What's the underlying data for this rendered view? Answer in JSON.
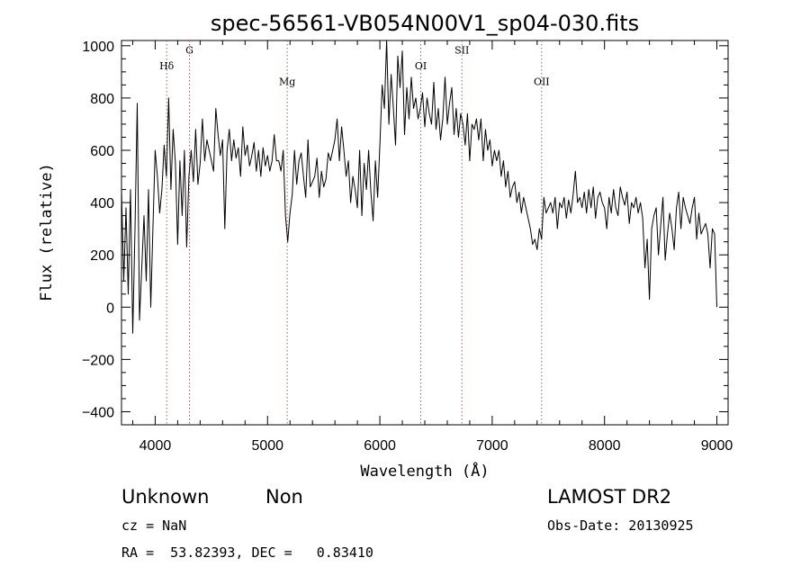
{
  "chart_data": {
    "type": "line",
    "title": "spec-56561-VB054N00V1_sp04-030.fits",
    "xlabel": "Wavelength (Å)",
    "ylabel": "Flux (relative)",
    "xlim": [
      3700,
      9100
    ],
    "ylim": [
      -450,
      1020
    ],
    "x_ticks": [
      4000,
      5000,
      6000,
      7000,
      8000,
      9000
    ],
    "y_ticks": [
      -400,
      -200,
      0,
      200,
      400,
      600,
      800,
      1000
    ],
    "grid": false,
    "series": [
      {
        "x": [
          3700,
          3720,
          3740,
          3760,
          3780,
          3800,
          3820,
          3840,
          3860,
          3880,
          3900,
          3920,
          3940,
          3960,
          3980,
          4000,
          4020,
          4040,
          4060,
          4080,
          4100,
          4120,
          4140,
          4160,
          4180,
          4200,
          4220,
          4240,
          4260,
          4280,
          4300,
          4320,
          4340,
          4360,
          4380,
          4400,
          4420,
          4440,
          4460,
          4480,
          4500,
          4520,
          4540,
          4560,
          4580,
          4600,
          4620,
          4640,
          4660,
          4680,
          4700,
          4720,
          4740,
          4760,
          4780,
          4800,
          4820,
          4840,
          4860,
          4880,
          4900,
          4920,
          4940,
          4960,
          4980,
          5000,
          5020,
          5040,
          5060,
          5080,
          5100,
          5120,
          5140,
          5160,
          5180,
          5200,
          5220,
          5240,
          5260,
          5280,
          5300,
          5320,
          5340,
          5360,
          5380,
          5400,
          5420,
          5440,
          5460,
          5480,
          5500,
          5520,
          5540,
          5560,
          5580,
          5600,
          5620,
          5640,
          5660,
          5680,
          5700,
          5720,
          5740,
          5760,
          5780,
          5800,
          5820,
          5840,
          5860,
          5880,
          5900,
          5920,
          5940,
          5960,
          5980,
          6000,
          6020,
          6040,
          6060,
          6080,
          6100,
          6120,
          6140,
          6160,
          6180,
          6200,
          6220,
          6240,
          6260,
          6280,
          6300,
          6320,
          6340,
          6360,
          6380,
          6400,
          6420,
          6440,
          6460,
          6480,
          6500,
          6520,
          6540,
          6560,
          6580,
          6600,
          6620,
          6640,
          6660,
          6680,
          6700,
          6720,
          6740,
          6760,
          6780,
          6800,
          6820,
          6840,
          6860,
          6880,
          6900,
          6920,
          6940,
          6960,
          6980,
          7000,
          7020,
          7040,
          7060,
          7080,
          7100,
          7120,
          7140,
          7160,
          7180,
          7200,
          7220,
          7240,
          7260,
          7280,
          7300,
          7320,
          7340,
          7360,
          7380,
          7400,
          7420,
          7440,
          7460,
          7480,
          7500,
          7520,
          7540,
          7560,
          7580,
          7600,
          7620,
          7640,
          7660,
          7680,
          7700,
          7720,
          7740,
          7760,
          7780,
          7800,
          7820,
          7840,
          7860,
          7880,
          7900,
          7920,
          7940,
          7960,
          7980,
          8000,
          8020,
          8040,
          8060,
          8080,
          8100,
          8120,
          8140,
          8160,
          8180,
          8200,
          8220,
          8240,
          8260,
          8280,
          8300,
          8320,
          8340,
          8360,
          8380,
          8400,
          8420,
          8440,
          8460,
          8480,
          8500,
          8520,
          8540,
          8560,
          8580,
          8600,
          8620,
          8640,
          8660,
          8680,
          8700,
          8720,
          8740,
          8760,
          8780,
          8800,
          8820,
          8840,
          8860,
          8880,
          8900,
          8920,
          8940,
          8960,
          8980,
          9000
        ],
        "y": [
          450,
          100,
          380,
          50,
          450,
          -100,
          300,
          780,
          -50,
          150,
          350,
          100,
          450,
          0,
          300,
          600,
          500,
          360,
          450,
          620,
          500,
          800,
          450,
          680,
          550,
          240,
          560,
          350,
          600,
          230,
          500,
          600,
          480,
          680,
          470,
          550,
          720,
          560,
          640,
          600,
          560,
          520,
          760,
          660,
          580,
          640,
          300,
          600,
          680,
          560,
          640,
          570,
          610,
          500,
          690,
          580,
          620,
          540,
          580,
          630,
          520,
          600,
          500,
          610,
          540,
          580,
          520,
          560,
          660,
          560,
          560,
          520,
          600,
          350,
          250,
          360,
          430,
          600,
          470,
          560,
          590,
          500,
          420,
          640,
          460,
          480,
          500,
          570,
          420,
          520,
          460,
          490,
          590,
          560,
          600,
          640,
          720,
          560,
          690,
          600,
          500,
          560,
          400,
          500,
          450,
          380,
          600,
          350,
          550,
          450,
          600,
          440,
          330,
          560,
          420,
          620,
          850,
          760,
          1020,
          700,
          890,
          760,
          620,
          960,
          840,
          980,
          660,
          840,
          720,
          880,
          760,
          800,
          720,
          760,
          820,
          690,
          800,
          740,
          700,
          860,
          680,
          760,
          640,
          720,
          880,
          700,
          780,
          840,
          660,
          760,
          650,
          740,
          700,
          620,
          740,
          560,
          700,
          680,
          720,
          640,
          720,
          560,
          680,
          600,
          640,
          540,
          600,
          560,
          600,
          500,
          560,
          460,
          520,
          420,
          460,
          480,
          400,
          440,
          360,
          420,
          380,
          340,
          300,
          240,
          260,
          220,
          300,
          260,
          420,
          360,
          380,
          400,
          360,
          420,
          300,
          400,
          380,
          420,
          340,
          410,
          360,
          430,
          520,
          400,
          420,
          380,
          440,
          360,
          450,
          380,
          460,
          340,
          420,
          440,
          400,
          380,
          300,
          420,
          360,
          450,
          380,
          350,
          460,
          420,
          390,
          440,
          320,
          400,
          380,
          420,
          360,
          400,
          340,
          150,
          260,
          30,
          300,
          350,
          380,
          200,
          310,
          420,
          180,
          280,
          360,
          300,
          220,
          380,
          440,
          300,
          420,
          380,
          350,
          320,
          380,
          420,
          260,
          360,
          280,
          300,
          320,
          280,
          150,
          300,
          280,
          0
        ]
      }
    ],
    "line_markers": [
      {
        "label": "Hδ",
        "x": 4102,
        "label_y": 910
      },
      {
        "label": "G",
        "x": 4305,
        "label_y": 970
      },
      {
        "label": "Mg",
        "x": 5175,
        "label_y": 850
      },
      {
        "label": "OI",
        "x": 6364,
        "label_y": 910
      },
      {
        "label": "SII",
        "x": 6730,
        "label_y": 970
      },
      {
        "label": "OII",
        "x": 7440,
        "label_y": 850
      }
    ],
    "line_marker_color": "#d04a4a",
    "spectrum_color": "#000000"
  },
  "footer": {
    "class_text": "Unknown",
    "subclass_text": "Non",
    "survey": "LAMOST DR2",
    "cz": "cz = NaN",
    "obs_date": "Obs-Date: 20130925",
    "coords": "RA =  53.82393, DEC =   0.83410"
  }
}
